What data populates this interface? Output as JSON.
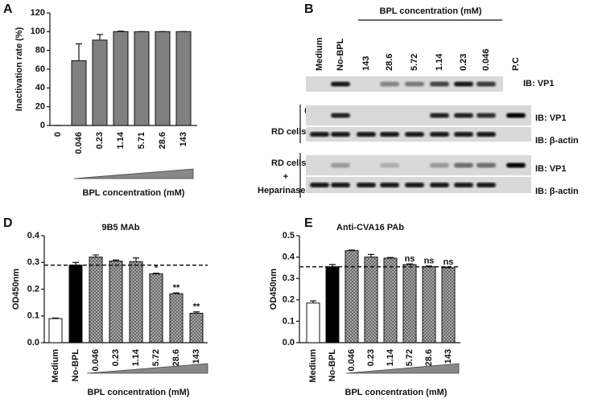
{
  "chart_data": [
    {
      "type": "bar",
      "panel_label": "A",
      "y_label": "Inactivation rate (%)",
      "x_label": "BPL concentration (mM)",
      "categories": [
        "0",
        "0.046",
        "0.23",
        "1.14",
        "5.71",
        "28.6",
        "143"
      ],
      "values": [
        0,
        69,
        91,
        100,
        100,
        100,
        100
      ],
      "errors": [
        0,
        18,
        6,
        0.5,
        0,
        0,
        0
      ],
      "color": "#808080",
      "ylim": [
        0,
        120
      ],
      "yticks": [
        0,
        20,
        40,
        60,
        80,
        100,
        120
      ]
    },
    {
      "type": "bar",
      "panel_label": "D",
      "title": "9B5 MAb",
      "y_label": "OD450nm",
      "x_label": "BPL concentration (mM)",
      "categories": [
        "Medium",
        "No-BPL",
        "0.046",
        "0.23",
        "1.14",
        "5.72",
        "28.6",
        "143"
      ],
      "values": [
        0.09,
        0.29,
        0.32,
        0.305,
        0.303,
        0.257,
        0.183,
        0.11
      ],
      "errors": [
        0.002,
        0.01,
        0.008,
        0.004,
        0.014,
        0.003,
        0.003,
        0.005
      ],
      "annotations": [
        null,
        null,
        null,
        null,
        null,
        "*",
        "**",
        "**"
      ],
      "bar_styles": [
        "open",
        "solid",
        "hatched",
        "hatched",
        "hatched",
        "hatched",
        "hatched",
        "hatched"
      ],
      "reference_line": 0.29,
      "ylim": [
        0,
        0.4
      ],
      "yticks": [
        {
          "value": 0,
          "label": "0.0"
        },
        0.1,
        0.2,
        0.3,
        0.4
      ]
    },
    {
      "type": "bar",
      "panel_label": "E",
      "title": "Anti-CVA16 PAb",
      "y_label": "OD450nm",
      "x_label": "BPL concentration (mM)",
      "categories": [
        "Medium",
        "No-BPL",
        "0.046",
        "0.23",
        "1.14",
        "5.72",
        "28.6",
        "143"
      ],
      "values": [
        0.185,
        0.355,
        0.43,
        0.4,
        0.395,
        0.365,
        0.355,
        0.35
      ],
      "errors": [
        0.01,
        0.01,
        0.003,
        0.012,
        0.003,
        0.003,
        0.003,
        0.003
      ],
      "annotations": [
        null,
        null,
        null,
        null,
        null,
        "ns",
        "ns",
        "ns"
      ],
      "bar_styles": [
        "open",
        "solid",
        "hatched",
        "hatched",
        "hatched",
        "hatched",
        "hatched",
        "hatched"
      ],
      "reference_line": 0.355,
      "ylim": [
        0,
        0.5
      ],
      "yticks": [
        {
          "value": 0,
          "label": "0.0"
        },
        0.1,
        0.2,
        0.3,
        0.4,
        0.5
      ]
    }
  ],
  "blots": {
    "panel_b": {
      "label": "B",
      "header": "BPL concentration (mM)",
      "lanes": [
        "Medium",
        "No-BPL",
        "143",
        "28.6",
        "5.72",
        "1.14",
        "0.23",
        "0.046",
        "P.C"
      ],
      "rows": [
        "IB: VP1"
      ]
    },
    "panel_c": {
      "label": "C",
      "rows": [
        "IB: VP1",
        "IB: β-actin",
        "IB: VP1",
        "IB: β-actin"
      ],
      "groups": [
        "RD cells",
        "RD cells",
        "+",
        "Heparinase III"
      ]
    }
  }
}
